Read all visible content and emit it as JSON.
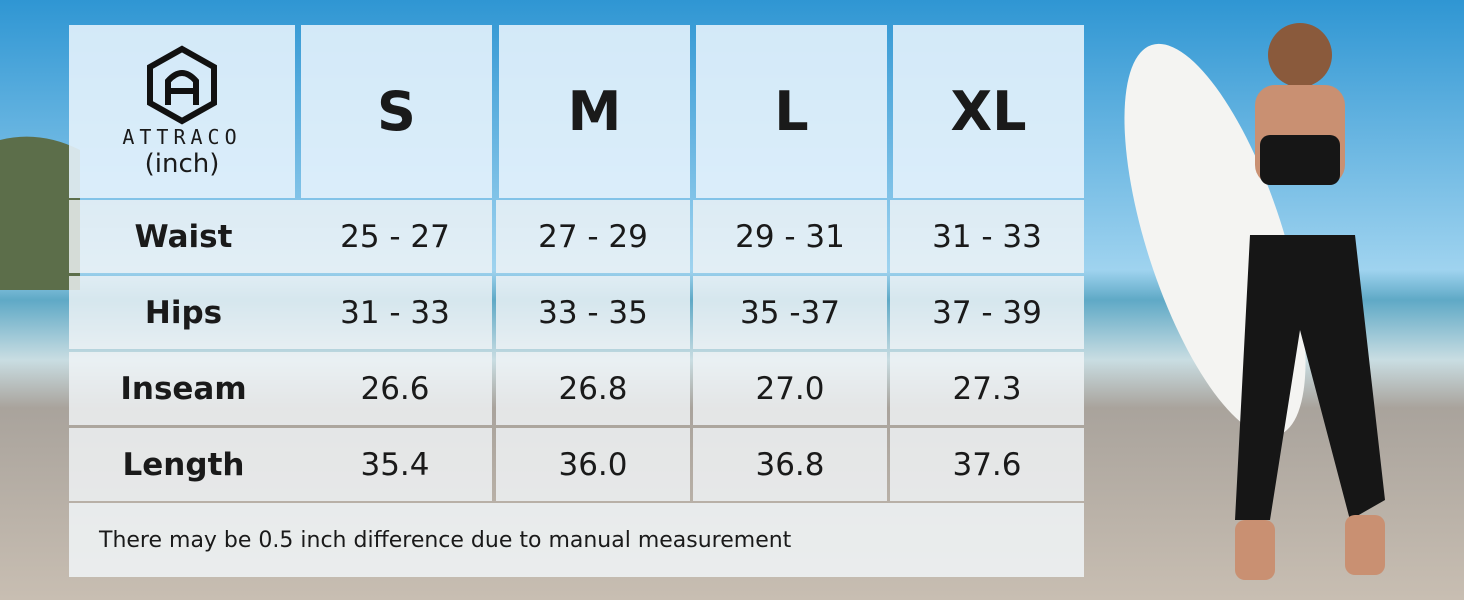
{
  "brand": "ATTRACO",
  "unit": "(inch)",
  "table": {
    "sizes": [
      "S",
      "M",
      "L",
      "XL"
    ],
    "rows": [
      {
        "label": "Waist",
        "cells": [
          "25 - 27",
          "27 - 29",
          "29 - 31",
          "31 - 33"
        ]
      },
      {
        "label": "Hips",
        "cells": [
          "31 - 33",
          "33 - 35",
          "35 -37",
          "37 - 39"
        ]
      },
      {
        "label": "Inseam",
        "cells": [
          "26.6",
          "26.8",
          "27.0",
          "27.3"
        ]
      },
      {
        "label": "Length",
        "cells": [
          "35.4",
          "36.0",
          "36.8",
          "37.6"
        ]
      }
    ]
  },
  "note": "There may be 0.5 inch difference due to manual measurement"
}
